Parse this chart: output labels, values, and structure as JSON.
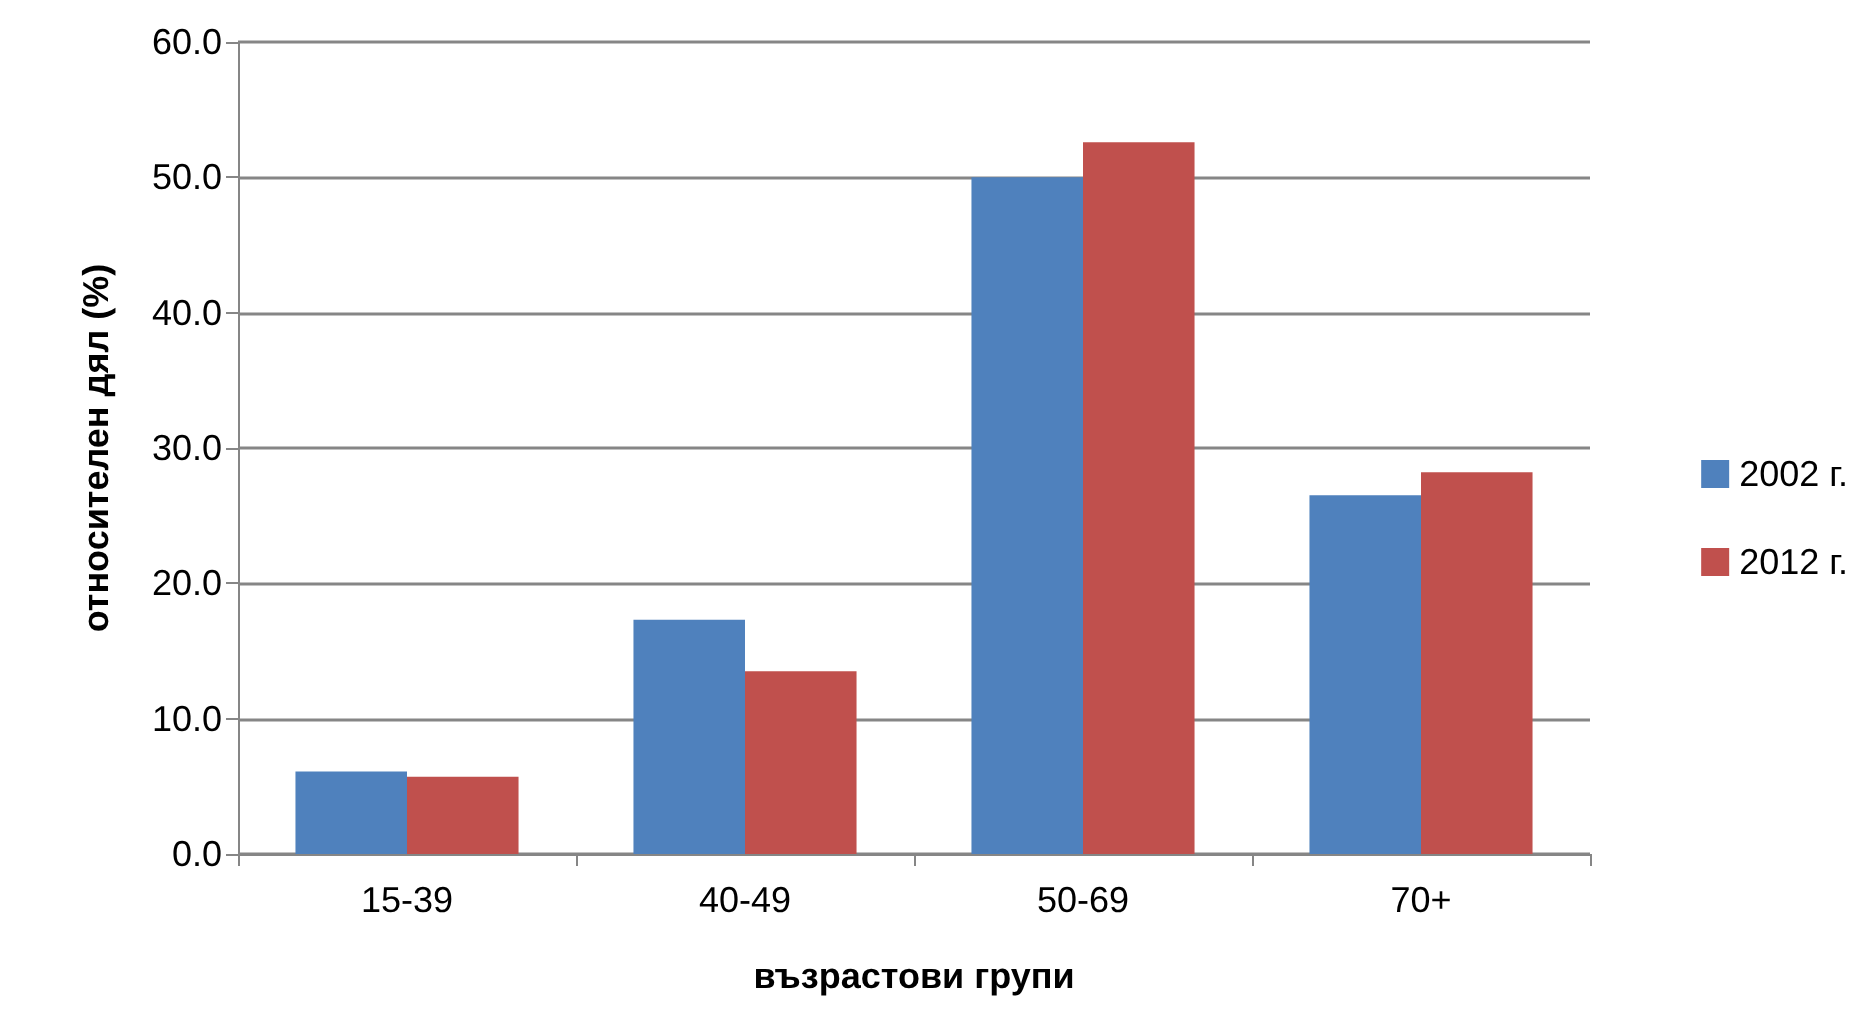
{
  "chart_data": {
    "type": "bar",
    "xlabel": "възрастови групи",
    "ylabel": "относителен дял (%)",
    "categories": [
      "15-39",
      "40-49",
      "50-69",
      "70+"
    ],
    "series": [
      {
        "name": "2002 г.",
        "color": "#4f81bd",
        "values": [
          6.1,
          17.3,
          50.0,
          26.5
        ]
      },
      {
        "name": "2012 г.",
        "color": "#c0504d",
        "values": [
          5.7,
          13.5,
          52.6,
          28.2
        ]
      }
    ],
    "ylim": [
      0,
      60
    ],
    "yticks": [
      {
        "value": 0,
        "label": "0.0"
      },
      {
        "value": 10,
        "label": "10.0"
      },
      {
        "value": 20,
        "label": "20.0"
      },
      {
        "value": 30,
        "label": "30.0"
      },
      {
        "value": 40,
        "label": "40.0"
      },
      {
        "value": 50,
        "label": "50.0"
      },
      {
        "value": 60,
        "label": "60.0"
      }
    ],
    "grid": "y",
    "legend": "right"
  }
}
